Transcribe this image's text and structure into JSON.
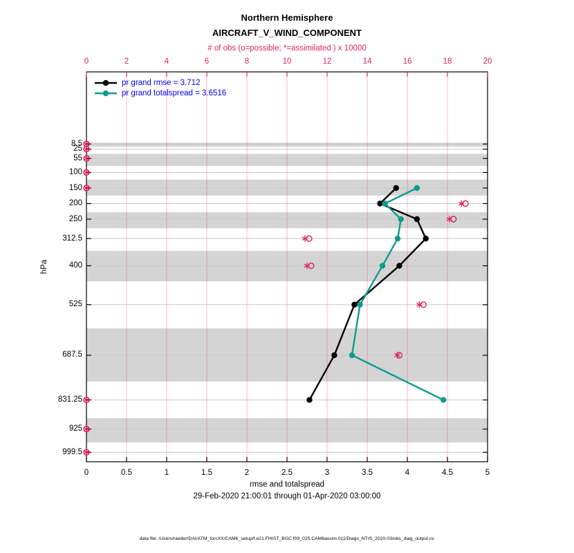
{
  "colors": {
    "accent": "#DE1F64",
    "v_grid": "rgba(222,31,100,0.30)",
    "h_grid": "#C9C9C9",
    "band": "#D4D4D4",
    "border": "#000000",
    "legend_text": "#0000EE"
  },
  "chart_data": {
    "type": "line",
    "title": "Northern Hemisphere",
    "subtitle": "AIRCRAFT_V_WIND_COMPONENT",
    "obs_axis": {
      "label": "# of obs (o=possible; *=assimilated ) x 10000",
      "min": 0,
      "max": 20,
      "ticks": [
        0,
        2,
        4,
        6,
        8,
        10,
        12,
        14,
        16,
        18,
        20
      ],
      "position": "top"
    },
    "x_axis": {
      "label": "rmse and totalspread",
      "min": 0,
      "max": 5,
      "ticks": [
        0,
        0.5,
        1,
        1.5,
        2,
        2.5,
        3,
        3.5,
        4,
        4.5,
        5
      ],
      "position": "bottom"
    },
    "y_axis": {
      "label": "hPa",
      "ticks": [
        8.5,
        25,
        55,
        100,
        150,
        200,
        250,
        312.5,
        400,
        525,
        687.5,
        831.25,
        925,
        999.5
      ],
      "direction": "pressure-increasing-downward"
    },
    "series": [
      {
        "name": "pr grand rmse = 3.712",
        "color": "#000000",
        "points": [
          [
            150,
            3.86
          ],
          [
            200,
            3.66
          ],
          [
            250,
            4.12
          ],
          [
            312.5,
            4.23
          ],
          [
            400,
            3.9
          ],
          [
            525,
            3.34
          ],
          [
            687.5,
            3.09
          ],
          [
            831.25,
            2.78
          ]
        ]
      },
      {
        "name": "pr grand totalspread = 3.6516",
        "color": "#0F9B8E",
        "points": [
          [
            150,
            4.12
          ],
          [
            200,
            3.72
          ],
          [
            250,
            3.92
          ],
          [
            312.5,
            3.88
          ],
          [
            400,
            3.69
          ],
          [
            525,
            3.41
          ],
          [
            687.5,
            3.31
          ],
          [
            831.25,
            4.45
          ]
        ]
      }
    ],
    "observations": [
      {
        "pressure": 8.5,
        "possible": 0,
        "assimilated": 0
      },
      {
        "pressure": 25,
        "possible": 0,
        "assimilated": 0
      },
      {
        "pressure": 55,
        "possible": 0,
        "assimilated": 0
      },
      {
        "pressure": 100,
        "possible": 0,
        "assimilated": 0
      },
      {
        "pressure": 150,
        "possible": 0,
        "assimilated": 0
      },
      {
        "pressure": 200,
        "possible": 18.9,
        "assimilated": 18.7
      },
      {
        "pressure": 250,
        "possible": 18.3,
        "assimilated": 18.1
      },
      {
        "pressure": 312.5,
        "possible": 11.1,
        "assimilated": 10.9
      },
      {
        "pressure": 400,
        "possible": 11.2,
        "assimilated": 11.0
      },
      {
        "pressure": 525,
        "possible": 16.8,
        "assimilated": 16.6
      },
      {
        "pressure": 687.5,
        "possible": 15.6,
        "assimilated": 15.5
      },
      {
        "pressure": 831.25,
        "possible": 0,
        "assimilated": 0
      },
      {
        "pressure": 925,
        "possible": 0,
        "assimilated": 0
      },
      {
        "pressure": 999.5,
        "possible": 0,
        "assimilated": 0
      }
    ],
    "shaded_bands_pressure": [
      [
        4,
        17
      ],
      [
        40,
        79
      ],
      [
        123,
        174
      ],
      [
        228,
        279
      ],
      [
        352,
        450
      ],
      [
        601,
        772
      ],
      [
        890,
        968
      ]
    ],
    "legend": {
      "position": "top-left-inside"
    },
    "annotations": {
      "date_range": "29-Feb-2020 21:00:01 through 01-Apr-2020 03:00:00",
      "data_file": "data file: /Users/raeder/DAI/ATM_forcXX/CAM6_setup/f.e21.FHIST_BGC.f09_025.CAM6assim.011/Diags_NTrS_2020-03/obs_diag_output.nc"
    }
  }
}
